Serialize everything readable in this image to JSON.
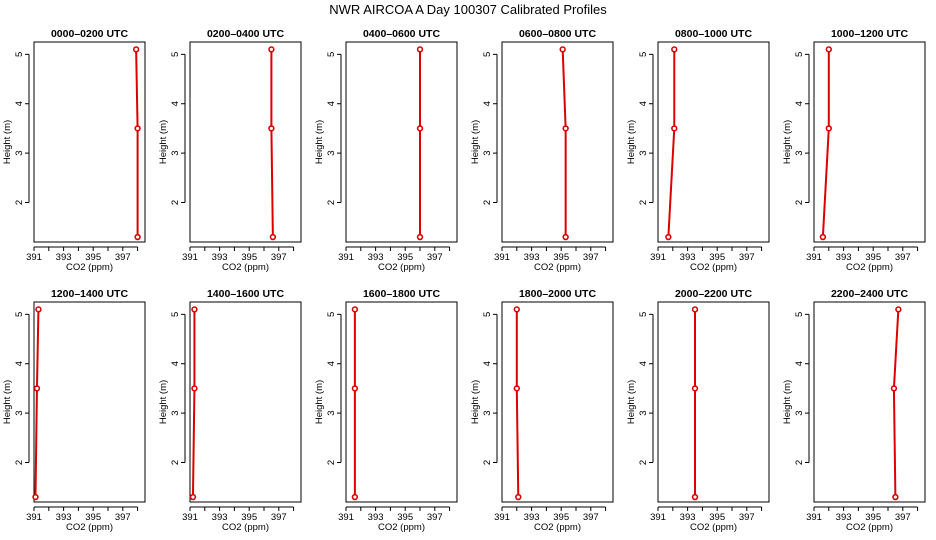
{
  "title": "NWR AIRCOA A  Day 100307  Calibrated Profiles",
  "chart_data": {
    "type": "scatter",
    "xlabel": "CO2 (ppm)",
    "ylabel": "Height (m)",
    "xlim": [
      391,
      398.5
    ],
    "ylim": [
      1.2,
      5.25
    ],
    "xticks": [
      "391",
      "393",
      "395",
      "397"
    ],
    "yticks": [
      "2",
      "3",
      "4",
      "5"
    ],
    "heights": [
      1.3,
      3.5,
      5.1
    ],
    "panels": [
      {
        "title": "0000–0200 UTC",
        "co2": [
          398.0,
          398.0,
          397.9
        ]
      },
      {
        "title": "0200–0400 UTC",
        "co2": [
          396.6,
          396.5,
          396.5
        ]
      },
      {
        "title": "0400–0600 UTC",
        "co2": [
          396.0,
          396.0,
          396.0
        ]
      },
      {
        "title": "0600–0800 UTC",
        "co2": [
          395.3,
          395.3,
          395.1
        ]
      },
      {
        "title": "0800–1000 UTC",
        "co2": [
          391.7,
          392.1,
          392.1
        ]
      },
      {
        "title": "1000–1200 UTC",
        "co2": [
          391.6,
          392.0,
          392.0
        ]
      },
      {
        "title": "1200–1400 UTC",
        "co2": [
          391.1,
          391.2,
          391.3
        ]
      },
      {
        "title": "1400–1600 UTC",
        "co2": [
          391.2,
          391.3,
          391.3
        ]
      },
      {
        "title": "1600–1800 UTC",
        "co2": [
          391.6,
          391.6,
          391.6
        ]
      },
      {
        "title": "1800–2000 UTC",
        "co2": [
          392.1,
          392.0,
          392.0
        ]
      },
      {
        "title": "2000–2200 UTC",
        "co2": [
          393.5,
          393.5,
          393.5
        ]
      },
      {
        "title": "2200–2400 UTC",
        "co2": [
          396.5,
          396.4,
          396.7
        ]
      }
    ],
    "colors": {
      "profile": "#dd0000",
      "axis": "#000000"
    }
  }
}
